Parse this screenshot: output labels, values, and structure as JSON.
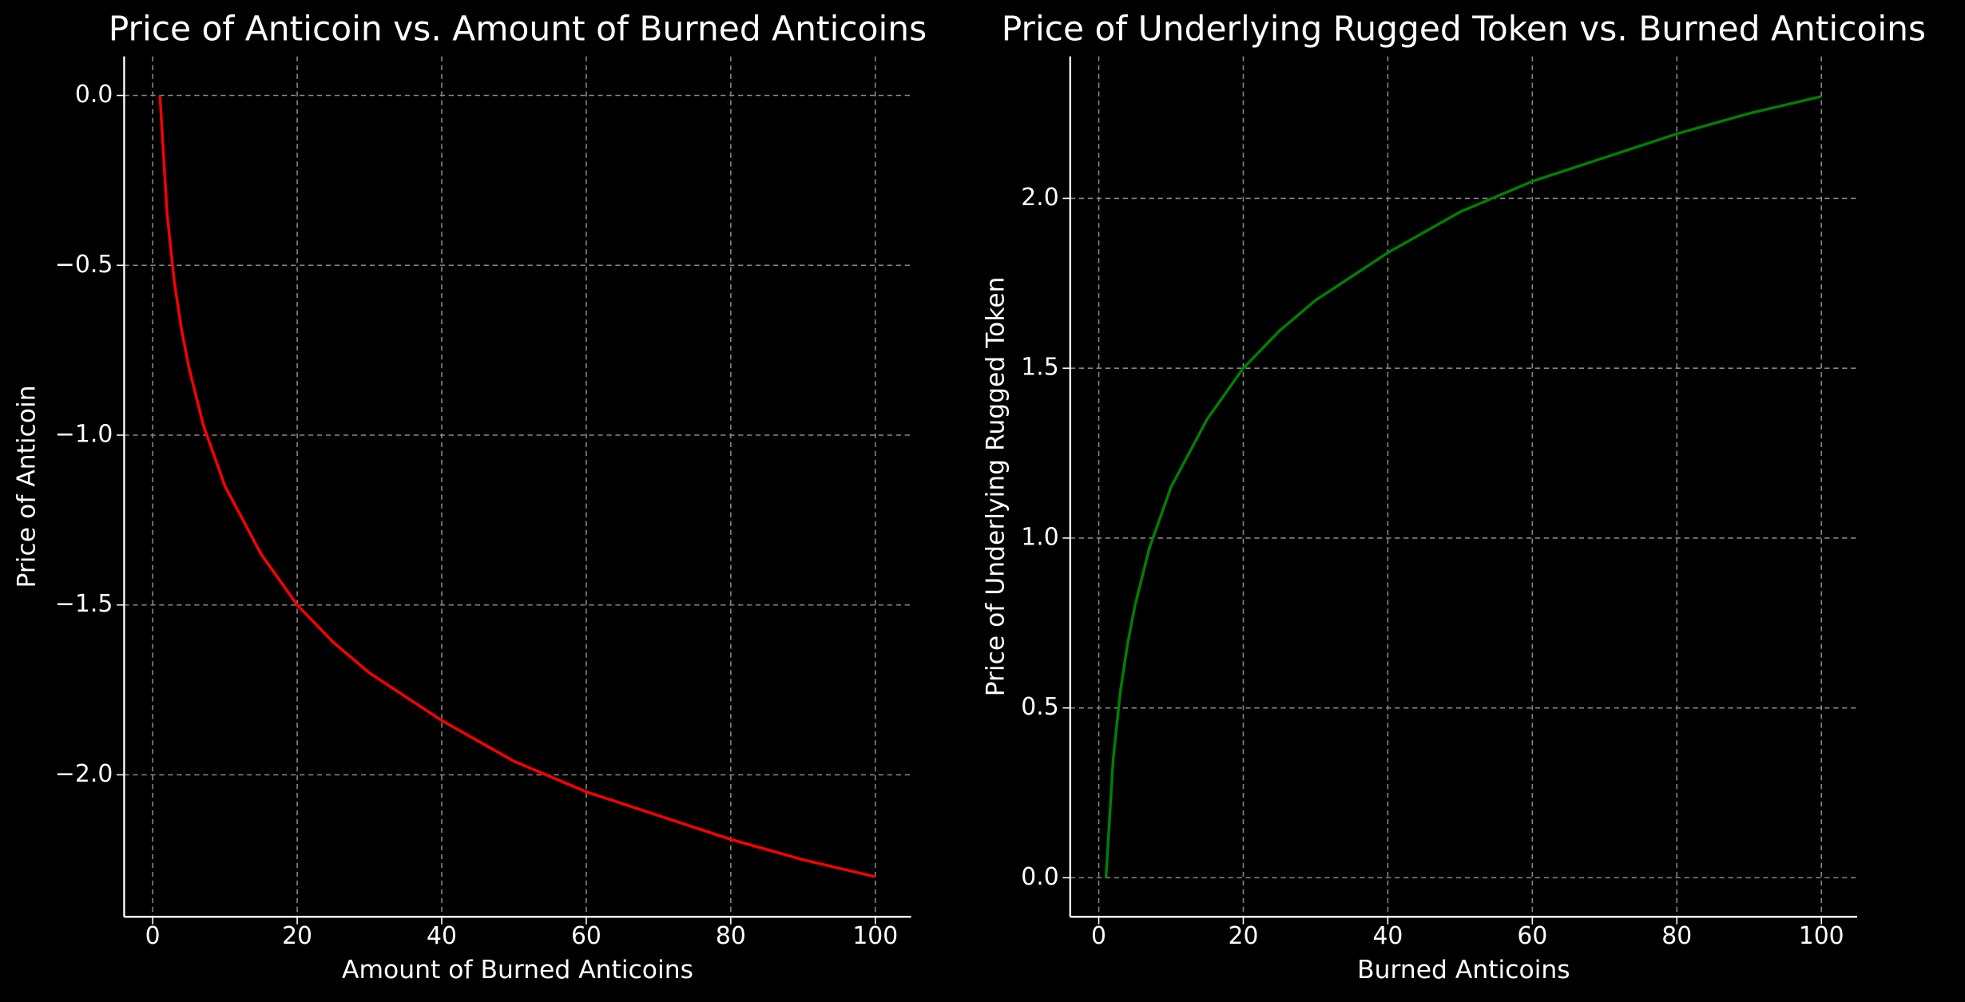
{
  "chart_data": [
    {
      "type": "line",
      "title": "Price of Anticoin vs. Amount of Burned Anticoins",
      "x_label": "Amount of Burned Anticoins",
      "y_label": "Price of Anticoin",
      "x": [
        1,
        2,
        3,
        4,
        5,
        7,
        10,
        15,
        20,
        25,
        30,
        40,
        50,
        60,
        70,
        80,
        90,
        100
      ],
      "series": [
        {
          "color": "#ff0000",
          "values": [
            0,
            -0.35,
            -0.55,
            -0.69,
            -0.8,
            -0.97,
            -1.15,
            -1.35,
            -1.5,
            -1.61,
            -1.7,
            -1.84,
            -1.96,
            -2.05,
            -2.12,
            -2.19,
            -2.25,
            -2.3
          ]
        }
      ],
      "xlim": [
        -3.95,
        104.95
      ],
      "ylim": [
        -2.418,
        0.115
      ],
      "xticks": [
        0,
        20,
        40,
        60,
        80,
        100
      ],
      "yticks": [
        {
          "value": 0,
          "label": "0.0"
        },
        {
          "value": -0.5,
          "label": "−0.5"
        },
        {
          "value": -1,
          "label": "−1.0"
        },
        {
          "value": -1.5,
          "label": "−1.5"
        },
        {
          "value": -2,
          "label": "−2.0"
        }
      ],
      "grid": true
    },
    {
      "type": "line",
      "title": "Price of Underlying Rugged Token vs. Burned Anticoins",
      "x_label": "Burned Anticoins",
      "y_label": "Price of Underlying Rugged Token",
      "x": [
        1,
        2,
        3,
        4,
        5,
        7,
        10,
        15,
        20,
        25,
        30,
        40,
        50,
        60,
        70,
        80,
        90,
        100
      ],
      "series": [
        {
          "color": "#008000",
          "values": [
            0,
            0.35,
            0.55,
            0.69,
            0.8,
            0.97,
            1.15,
            1.35,
            1.5,
            1.61,
            1.7,
            1.84,
            1.96,
            2.05,
            2.12,
            2.19,
            2.25,
            2.3
          ]
        }
      ],
      "xlim": [
        -3.95,
        104.95
      ],
      "ylim": [
        -0.115,
        2.418
      ],
      "xticks": [
        0,
        20,
        40,
        60,
        80,
        100
      ],
      "yticks": [
        {
          "value": 0,
          "label": "0.0"
        },
        {
          "value": 0.5,
          "label": "0.5"
        },
        {
          "value": 1,
          "label": "1.0"
        },
        {
          "value": 1.5,
          "label": "1.5"
        },
        {
          "value": 2,
          "label": "2.0"
        }
      ],
      "grid": true
    }
  ]
}
